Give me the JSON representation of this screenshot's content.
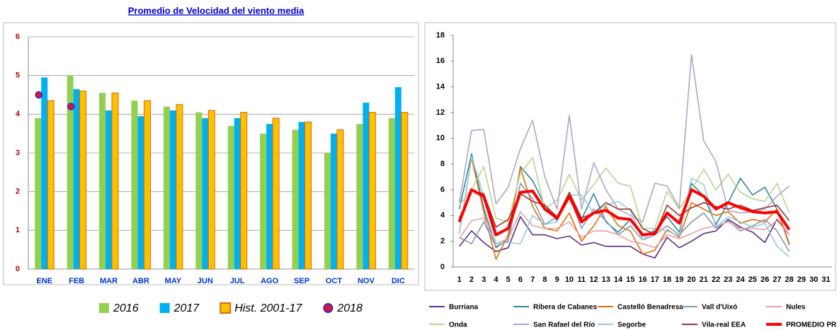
{
  "chart_data": [
    {
      "type": "bar",
      "title": "Promedio de Velocidad del viento media",
      "categories": [
        "ENE",
        "FEB",
        "MAR",
        "ABR",
        "MAY",
        "JUN",
        "JUL",
        "AGO",
        "SEP",
        "OCT",
        "NOV",
        "DIC"
      ],
      "series": [
        {
          "name": "2016",
          "color": "#92d050",
          "values": [
            3.9,
            5.0,
            4.55,
            4.35,
            4.2,
            4.05,
            3.7,
            3.5,
            3.6,
            3.0,
            3.75,
            3.9
          ]
        },
        {
          "name": "2017",
          "color": "#00b0f0",
          "values": [
            4.95,
            4.65,
            4.1,
            3.95,
            4.1,
            3.9,
            3.9,
            3.75,
            3.8,
            3.5,
            4.3,
            4.7
          ]
        },
        {
          "name": "Hist. 2001-17",
          "color": "#ffc000",
          "edgecolor": "#d9680f",
          "values": [
            4.35,
            4.6,
            4.55,
            4.35,
            4.25,
            4.1,
            4.05,
            3.9,
            3.8,
            3.6,
            4.05,
            4.05
          ]
        },
        {
          "name": "2018",
          "type": "scatter",
          "color": "#e8102a",
          "edgecolor": "#2b2bd0",
          "values": [
            4.5,
            4.2,
            null,
            null,
            null,
            null,
            null,
            null,
            null,
            null,
            null,
            null
          ]
        }
      ],
      "ylim": [
        0,
        6
      ],
      "yticks": [
        0,
        1,
        2,
        3,
        4,
        5,
        6
      ],
      "grid": true
    },
    {
      "type": "line",
      "categories": [
        "1",
        "2",
        "3",
        "4",
        "5",
        "6",
        "7",
        "8",
        "9",
        "10",
        "11",
        "12",
        "13",
        "14",
        "15",
        "16",
        "17",
        "18",
        "19",
        "20",
        "21",
        "22",
        "23",
        "24",
        "25",
        "26",
        "27",
        "28",
        "29",
        "30",
        "31"
      ],
      "series": [
        {
          "name": "Burriana",
          "color": "#5b2c83",
          "values": [
            1.6,
            2.8,
            1.9,
            1.2,
            1.5,
            3.9,
            2.5,
            2.5,
            2.2,
            2.4,
            1.7,
            1.9,
            1.6,
            1.6,
            1.6,
            1.0,
            0.7,
            2.3,
            1.5,
            2.0,
            2.6,
            2.8,
            3.7,
            3.1,
            2.7,
            1.9,
            3.7,
            2.5,
            null,
            null,
            null
          ]
        },
        {
          "name": "Ribera de Cabanes",
          "color": "#31859c",
          "values": [
            4.5,
            8.8,
            4.6,
            1.5,
            2.2,
            7.8,
            6.7,
            4.8,
            3.6,
            5.8,
            3.7,
            5.7,
            3.5,
            2.7,
            3.7,
            2.4,
            2.8,
            3.9,
            2.7,
            6.5,
            5.5,
            3.3,
            5.0,
            6.9,
            5.6,
            6.2,
            4.5,
            1.8,
            null,
            null,
            null
          ]
        },
        {
          "name": "Castelló Benadresa",
          "color": "#e46c0a",
          "values": [
            2.6,
            8.5,
            4.3,
            0.6,
            2.5,
            7.7,
            4.7,
            3.0,
            2.8,
            4.2,
            2.0,
            3.2,
            4.7,
            3.2,
            2.8,
            1.0,
            1.3,
            2.9,
            2.3,
            5.0,
            4.5,
            4.0,
            4.3,
            3.4,
            3.7,
            3.5,
            4.5,
            1.7,
            null,
            null,
            null
          ]
        },
        {
          "name": "Vall d'Uixó",
          "color": "#8497b0",
          "values": [
            2.3,
            1.8,
            3.5,
            1.6,
            2.0,
            6.5,
            5.3,
            3.3,
            3.9,
            5.5,
            3.0,
            4.5,
            3.6,
            2.5,
            3.2,
            2.1,
            2.5,
            3.2,
            2.5,
            3.5,
            4.2,
            3.0,
            3.6,
            2.8,
            3.2,
            3.7,
            2.8,
            1.2,
            null,
            null,
            null
          ]
        },
        {
          "name": "Nules",
          "color": "#e6a0a0",
          "values": [
            2.2,
            3.6,
            3.8,
            1.8,
            2.2,
            4.3,
            3.2,
            3.0,
            3.0,
            3.5,
            2.3,
            2.8,
            2.8,
            2.5,
            2.0,
            1.8,
            1.5,
            2.5,
            2.2,
            2.6,
            3.0,
            3.2,
            3.5,
            3.0,
            3.0,
            2.9,
            3.6,
            2.5,
            null,
            null,
            null
          ]
        },
        {
          "name": "Onda",
          "color": "#b5d68f",
          "values": [
            4.8,
            6.0,
            7.8,
            3.8,
            3.5,
            7.3,
            8.5,
            4.5,
            5.2,
            7.2,
            5.2,
            6.4,
            7.7,
            6.5,
            6.3,
            3.0,
            3.0,
            5.9,
            4.5,
            6.0,
            7.6,
            6.0,
            7.2,
            5.8,
            5.3,
            5.1,
            6.5,
            4.2,
            null,
            null,
            null
          ]
        },
        {
          "name": "San Rafael del Río",
          "color": "#b3a2c7",
          "values": [
            5.0,
            10.6,
            10.7,
            4.9,
            6.2,
            9.2,
            11.4,
            7.0,
            4.5,
            11.8,
            4.5,
            8.1,
            6.0,
            4.5,
            4.0,
            3.5,
            6.5,
            6.3,
            4.6,
            16.5,
            9.8,
            8.2,
            4.4,
            4.2,
            4.3,
            4.5,
            5.5,
            6.3,
            null,
            null,
            null
          ]
        },
        {
          "name": "Segorbe",
          "color": "#93cddd",
          "values": [
            2.6,
            8.6,
            5.5,
            1.8,
            1.9,
            1.8,
            4.0,
            3.3,
            3.5,
            5.6,
            5.6,
            4.2,
            4.8,
            5.1,
            4.4,
            2.1,
            3.0,
            2.8,
            2.4,
            6.9,
            6.4,
            3.1,
            3.9,
            3.5,
            3.1,
            3.4,
            1.6,
            0.8,
            null,
            null,
            null
          ]
        },
        {
          "name": "Vila-real EEA",
          "color": "#953735",
          "values": [
            3.8,
            5.9,
            5.7,
            3.1,
            3.7,
            5.7,
            5.1,
            4.8,
            3.9,
            5.8,
            3.8,
            4.2,
            5.0,
            4.5,
            4.5,
            3.0,
            2.5,
            4.8,
            4.0,
            4.6,
            5.0,
            4.7,
            4.5,
            4.8,
            4.4,
            4.6,
            4.8,
            3.6,
            null,
            null,
            null
          ]
        },
        {
          "name": "PROMEDIO PR",
          "color": "#ff0000",
          "width": 4,
          "values": [
            3.5,
            6.0,
            5.5,
            2.5,
            3.0,
            5.8,
            5.9,
            4.5,
            3.8,
            5.5,
            3.5,
            4.2,
            4.4,
            3.8,
            3.7,
            2.5,
            2.6,
            4.2,
            3.4,
            6.0,
            5.5,
            4.5,
            5.0,
            4.6,
            4.3,
            4.2,
            4.3,
            2.9,
            null,
            null,
            null
          ]
        }
      ],
      "ylim": [
        0,
        18
      ],
      "yticks": [
        0,
        2,
        4,
        6,
        8,
        10,
        12,
        14,
        16,
        18
      ],
      "grid": false
    }
  ]
}
